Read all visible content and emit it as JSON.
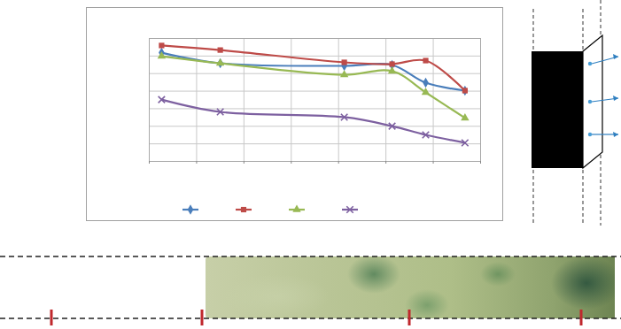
{
  "chart_data": {
    "type": "line",
    "x": [
      0.26,
      1.5,
      4.12,
      5.13,
      5.84,
      6.67
    ],
    "series": [
      {
        "color": "#4a7ebb",
        "marker": "diamond",
        "values": [
          6.19,
          5.59,
          5.44,
          5.49,
          4.48,
          4.03
        ]
      },
      {
        "color": "#be4b48",
        "marker": "square",
        "values": [
          6.6,
          6.34,
          5.64,
          5.54,
          5.74,
          4.03
        ]
      },
      {
        "color": "#98b954",
        "marker": "triangle",
        "values": [
          5.99,
          5.59,
          4.93,
          5.14,
          3.93,
          2.47
        ]
      },
      {
        "color": "#7d60a0",
        "marker": "x",
        "values": [
          3.52,
          2.82,
          2.52,
          2.01,
          1.51,
          1.06
        ]
      }
    ],
    "xlim": [
      0,
      7
    ],
    "xticks": [
      0,
      1,
      2,
      3,
      4,
      5,
      6,
      7
    ],
    "ylim": [
      0,
      7
    ],
    "yticks": [
      0,
      1,
      2,
      3,
      4,
      5,
      6,
      7
    ],
    "grid": true,
    "tick_labels": false,
    "legend": "bottom",
    "line_style": "solid"
  }
}
